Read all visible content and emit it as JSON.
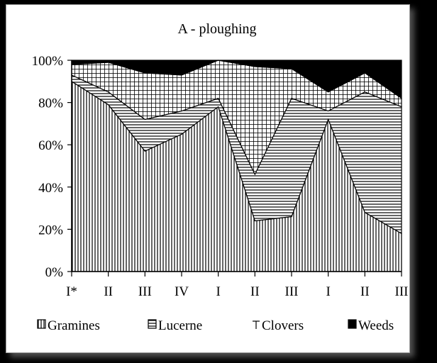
{
  "chart_data": {
    "type": "area",
    "stacked": true,
    "percent": true,
    "title": "A - ploughing",
    "categories": [
      "I*",
      "II",
      "III",
      "IV",
      "I",
      "II",
      "III",
      "I",
      "II",
      "III"
    ],
    "series": [
      {
        "name": "Gramines",
        "pattern": "vertical-lines",
        "values": [
          90,
          79,
          57,
          65,
          78,
          24,
          26,
          72,
          28,
          18
        ]
      },
      {
        "name": "Lucerne",
        "pattern": "horizontal-lines",
        "values": [
          3,
          6,
          15,
          11,
          4,
          22,
          56,
          4,
          57,
          60
        ]
      },
      {
        "name": "Clovers",
        "pattern": "grid",
        "values": [
          5,
          14,
          22,
          17,
          18,
          51,
          14,
          9,
          9,
          4
        ]
      },
      {
        "name": "Weeds",
        "pattern": "solid",
        "values": [
          2,
          1,
          6,
          7,
          0,
          3,
          4,
          15,
          6,
          18
        ]
      }
    ],
    "yticks": [
      "0%",
      "20%",
      "40%",
      "60%",
      "80%",
      "100%"
    ],
    "ylim": [
      0,
      100
    ],
    "legend_position": "bottom",
    "grid": false,
    "colors": {
      "fill": "#000000",
      "background": "#ffffff",
      "line": "#000000"
    }
  }
}
